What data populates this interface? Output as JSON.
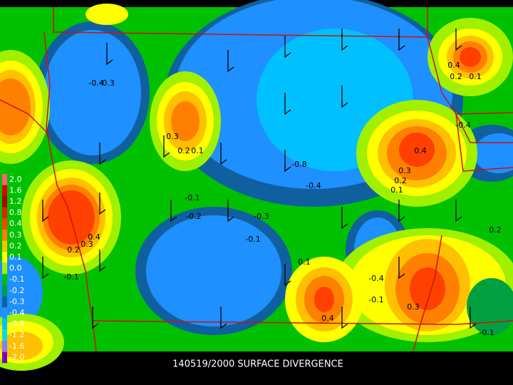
{
  "caption": "140519/2000 SURFACE DIVERGENCE",
  "legend": [
    {
      "label": "2.0",
      "color": "#ff6080"
    },
    {
      "label": "1.6",
      "color": "#e00000"
    },
    {
      "label": "1.2",
      "color": "#b00000"
    },
    {
      "label": "0.8",
      "color": "#e02000"
    },
    {
      "label": "0.4",
      "color": "#ff4000"
    },
    {
      "label": "0.3",
      "color": "#ff8000"
    },
    {
      "label": "0.2",
      "color": "#ffc000"
    },
    {
      "label": "0.1",
      "color": "#ffff00"
    },
    {
      "label": "0.0",
      "color": "#a0f000"
    },
    {
      "label": "-0.1",
      "color": "#00c000"
    },
    {
      "label": "-0.2",
      "color": "#00a040"
    },
    {
      "label": "-0.3",
      "color": "#1060a0"
    },
    {
      "label": "-0.4",
      "color": "#1e90ff"
    },
    {
      "label": "-0.8",
      "color": "#00c0ff"
    },
    {
      "label": "-1.2",
      "color": "#00e0e0"
    },
    {
      "label": "-1.6",
      "color": "#8080ff"
    },
    {
      "label": "-2.0",
      "color": "#8000c0"
    }
  ],
  "contour_labels": [
    "-0.4",
    "-0.3",
    "0.3",
    "0.2",
    "0.1",
    "-0.8",
    "-0.4",
    "0.4",
    "0.3",
    "0.2",
    "0.1",
    "-0.1",
    "-0.2",
    "-0.3",
    "-0.1",
    "0.4",
    "0.3",
    "0.2",
    "-0.1",
    "0.4",
    "0.3",
    "-0.4",
    "-0.1",
    "0.4",
    "0.2",
    "0.1",
    "0.2",
    "-0.4",
    "-0.1",
    "0.1"
  ]
}
